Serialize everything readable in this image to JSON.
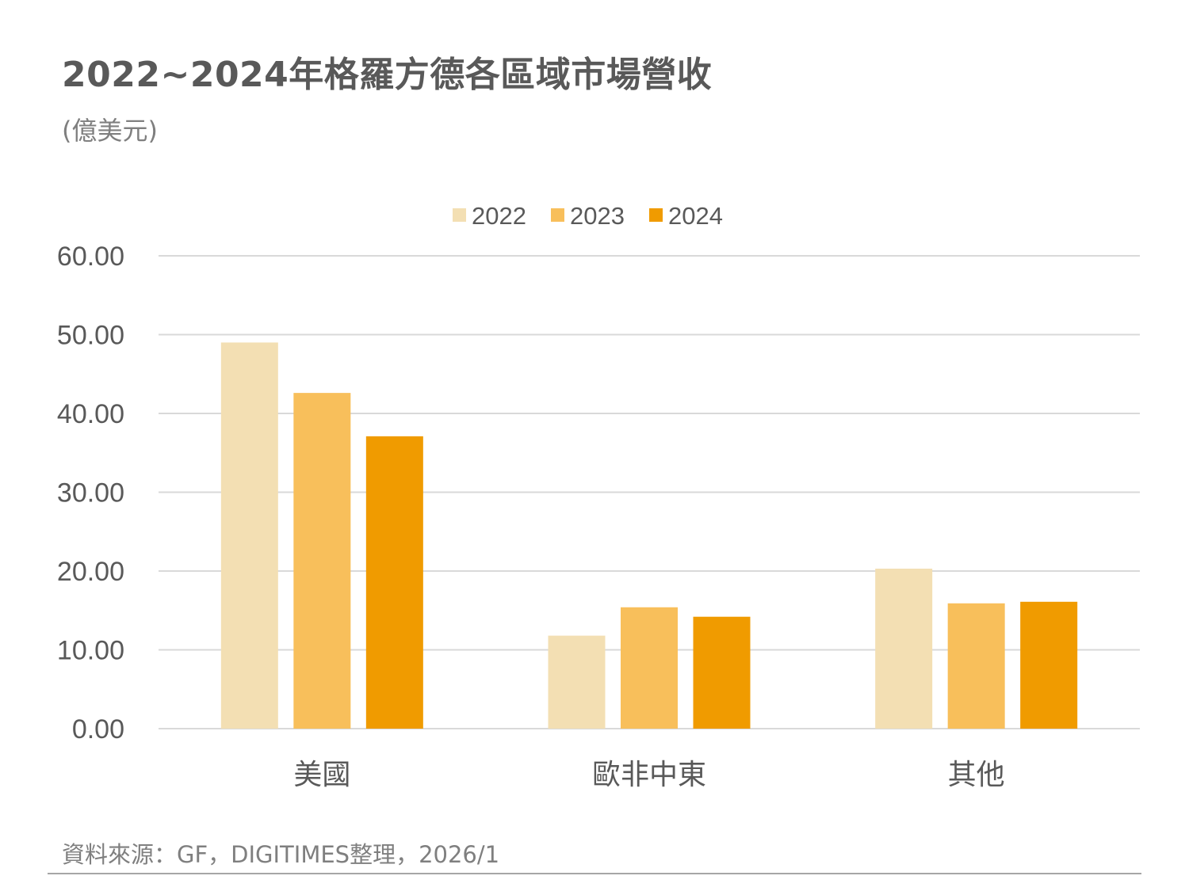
{
  "header": {
    "title": "2022~2024年格羅方德各區域市場營收",
    "unit": "(億美元)"
  },
  "footer": {
    "source": "資料來源：GF，DIGITIMES整理，2026/1"
  },
  "colors": {
    "series": [
      "#F3DFB3",
      "#F8BF5B",
      "#F09B00"
    ],
    "grid": "#d9d9d9",
    "axis_text": "#595959",
    "category_text": "#595959"
  },
  "chart_data": {
    "type": "bar",
    "title": "2022~2024年格羅方德各區域市場營收",
    "subtitle": "(億美元)",
    "categories": [
      "美國",
      "歐非中東",
      "其他"
    ],
    "series": [
      {
        "name": "2022",
        "values": [
          49.0,
          11.8,
          20.3
        ]
      },
      {
        "name": "2023",
        "values": [
          42.6,
          15.4,
          15.9
        ]
      },
      {
        "name": "2024",
        "values": [
          37.1,
          14.2,
          16.1
        ]
      }
    ],
    "ylim": [
      0,
      60
    ],
    "yticks": [
      "0.00",
      "10.00",
      "20.00",
      "30.00",
      "40.00",
      "50.00",
      "60.00"
    ],
    "ytick_values": [
      0,
      10,
      20,
      30,
      40,
      50,
      60
    ],
    "grid": true,
    "legend": "top-center"
  }
}
